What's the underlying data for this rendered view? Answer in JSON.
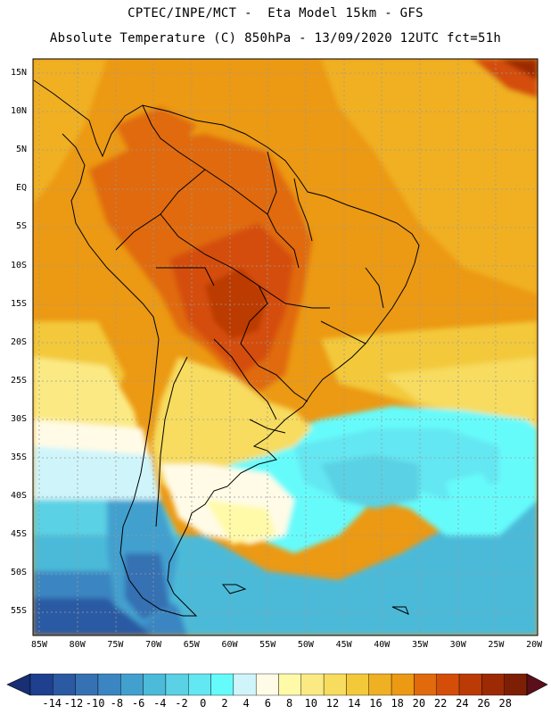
{
  "title_line1": "CPTEC/INPE/MCT -  Eta Model 15km - GFS",
  "title_line2": "Absolute Temperature (C) 850hPa - 13/09/2020 12UTC fct=51h",
  "lat_labels": [
    "15N",
    "10N",
    "5N",
    "EQ",
    "5S",
    "10S",
    "15S",
    "20S",
    "25S",
    "30S",
    "35S",
    "40S",
    "45S",
    "50S",
    "55S"
  ],
  "lon_labels": [
    "85W",
    "80W",
    "75W",
    "70W",
    "65W",
    "60W",
    "55W",
    "50W",
    "45W",
    "40W",
    "35W",
    "30W",
    "25W",
    "20W"
  ],
  "colorbar": {
    "labels": [
      "-14",
      "-12",
      "-10",
      "-8",
      "-6",
      "-4",
      "-2",
      "0",
      "2",
      "4",
      "6",
      "8",
      "10",
      "12",
      "14",
      "16",
      "18",
      "20",
      "22",
      "24",
      "26",
      "28"
    ],
    "colors": [
      "#1f3f8f",
      "#2b5aa3",
      "#3671b3",
      "#3b86c2",
      "#42a0cf",
      "#4cbad9",
      "#5ad1e4",
      "#63e7f2",
      "#66fbfb",
      "#cff5fb",
      "#fffbe6",
      "#fffaa8",
      "#fbea83",
      "#f7dc5e",
      "#f3c93a",
      "#f0b023",
      "#ec9913",
      "#e06a0c",
      "#d44e0a",
      "#bb3a06",
      "#9c2a04",
      "#7d1f04"
    ],
    "under_color": "#182f74",
    "over_color": "#5a0f1a"
  },
  "map": {
    "lat_range": [
      -58,
      17
    ],
    "lon_range": [
      -86,
      -19
    ],
    "grid": true
  }
}
